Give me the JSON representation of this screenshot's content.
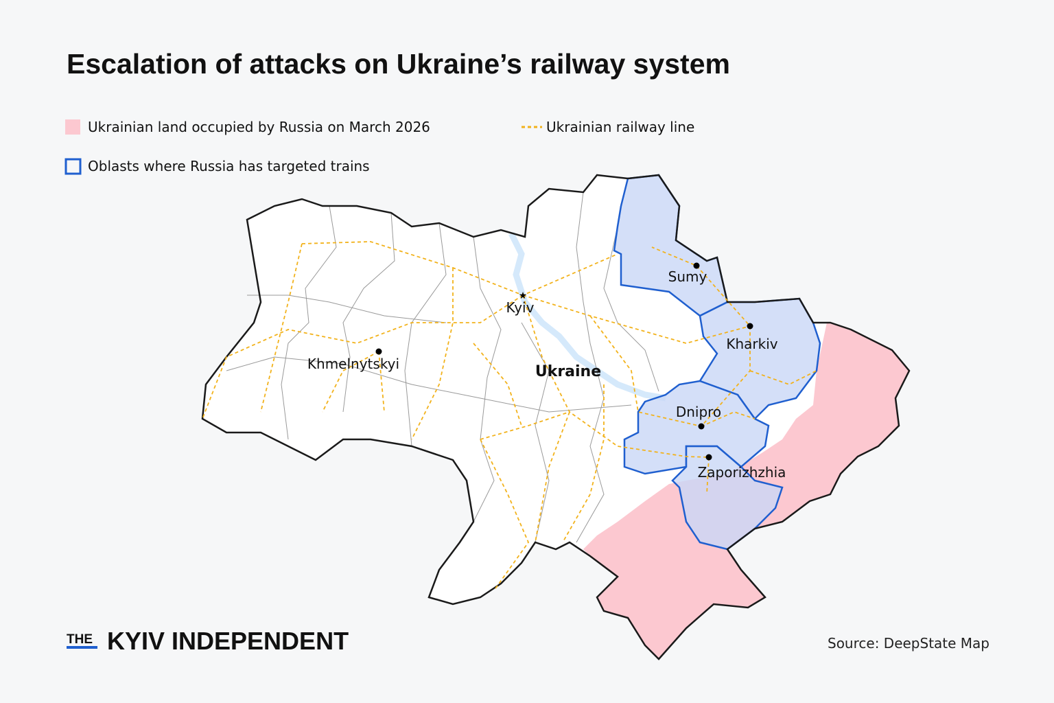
{
  "title": "Escalation of attacks on Ukraine’s railway system",
  "legend": [
    {
      "label": "Ukrainian land occupied by Russia on March 2026"
    },
    {
      "label": "Ukrainian railway line"
    },
    {
      "label": "Oblasts where Russia has targeted trains"
    }
  ],
  "map": {
    "country_label": "Ukraine",
    "cities": [
      {
        "name": "Kyiv"
      },
      {
        "name": "Sumy"
      },
      {
        "name": "Kharkiv"
      },
      {
        "name": "Khmelnytskyi"
      },
      {
        "name": "Dnipro"
      },
      {
        "name": "Zaporizhzhia"
      }
    ]
  },
  "footer": {
    "logo_prefix": "THE",
    "logo": "KYIV INDEPENDENT",
    "source": "Source: DeepState Map"
  }
}
